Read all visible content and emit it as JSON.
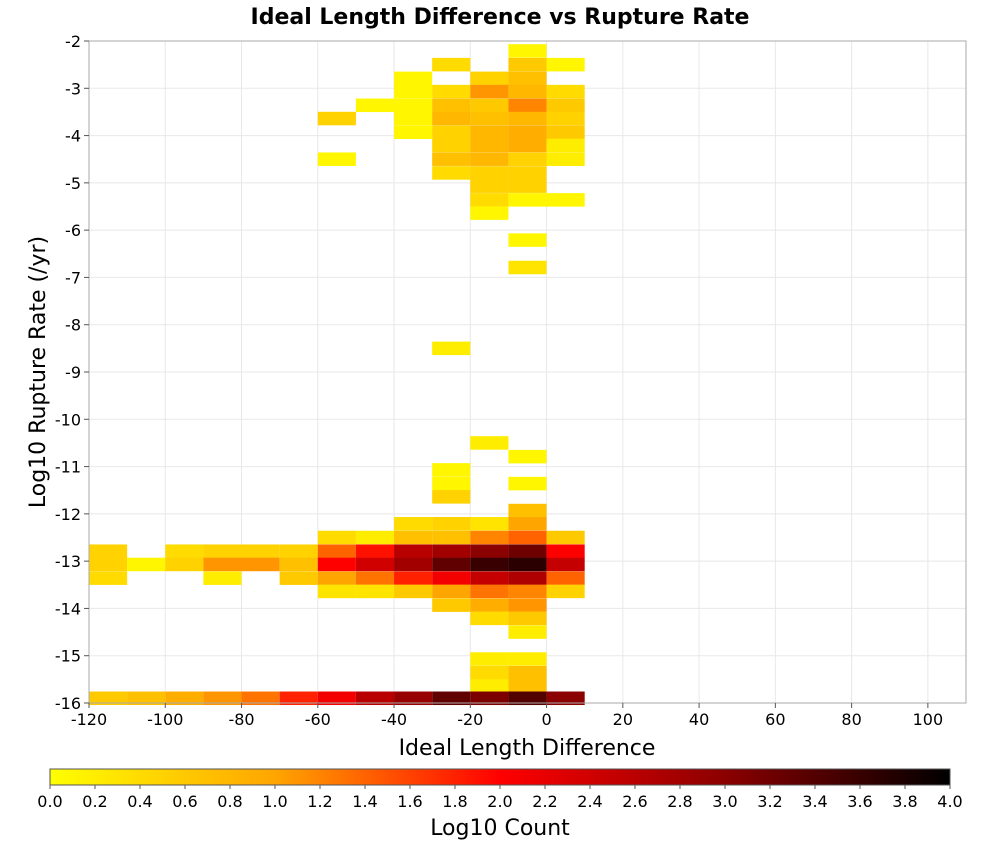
{
  "chart_data": {
    "type": "heatmap",
    "title": "Ideal Length Difference vs Rupture Rate",
    "xlabel": "Ideal Length Difference",
    "ylabel": "Log10 Rupture Rate (/yr)",
    "colorbar_label": "Log10 Count",
    "xlim": [
      -120,
      110
    ],
    "ylim": [
      -16,
      -2
    ],
    "x_ticks": [
      -120,
      -100,
      -80,
      -60,
      -40,
      -20,
      0,
      20,
      40,
      60,
      80,
      100
    ],
    "y_ticks": [
      -2,
      -3,
      -4,
      -5,
      -6,
      -7,
      -8,
      -9,
      -10,
      -11,
      -12,
      -13,
      -14,
      -15,
      -16
    ],
    "colorbar_range": [
      0.0,
      4.0
    ],
    "colorbar_ticks": [
      "0.0",
      "0.2",
      "0.4",
      "0.6",
      "0.8",
      "1.0",
      "1.2",
      "1.4",
      "1.6",
      "1.8",
      "2.0",
      "2.2",
      "2.4",
      "2.6",
      "2.8",
      "3.0",
      "3.2",
      "3.4",
      "3.6",
      "3.8",
      "4.0"
    ],
    "colorscale": [
      "#ffff00",
      "#ffa500",
      "#ff0000",
      "#8b0000",
      "#000000"
    ],
    "grid": true,
    "bin_width_x": 10,
    "bin_height_y": 0.2857,
    "cells": [
      {
        "x": -5,
        "y": -2.21,
        "v": 0.1
      },
      {
        "x": -25,
        "y": -2.5,
        "v": 0.4
      },
      {
        "x": -5,
        "y": -2.5,
        "v": 0.6
      },
      {
        "x": 5,
        "y": -2.5,
        "v": 0.1
      },
      {
        "x": -35,
        "y": -2.79,
        "v": 0.1
      },
      {
        "x": -15,
        "y": -2.79,
        "v": 0.5
      },
      {
        "x": -5,
        "y": -2.79,
        "v": 0.7
      },
      {
        "x": -35,
        "y": -3.07,
        "v": 0.1
      },
      {
        "x": -25,
        "y": -3.07,
        "v": 0.4
      },
      {
        "x": -15,
        "y": -3.07,
        "v": 1.1
      },
      {
        "x": -5,
        "y": -3.07,
        "v": 0.8
      },
      {
        "x": 5,
        "y": -3.07,
        "v": 0.4
      },
      {
        "x": -45,
        "y": -3.36,
        "v": 0.1
      },
      {
        "x": -35,
        "y": -3.36,
        "v": 0.1
      },
      {
        "x": -25,
        "y": -3.36,
        "v": 0.7
      },
      {
        "x": -15,
        "y": -3.36,
        "v": 0.6
      },
      {
        "x": -5,
        "y": -3.36,
        "v": 1.2
      },
      {
        "x": 5,
        "y": -3.36,
        "v": 0.6
      },
      {
        "x": -55,
        "y": -3.64,
        "v": 0.5
      },
      {
        "x": -35,
        "y": -3.64,
        "v": 0.1
      },
      {
        "x": -25,
        "y": -3.64,
        "v": 0.8
      },
      {
        "x": -15,
        "y": -3.64,
        "v": 0.7
      },
      {
        "x": -5,
        "y": -3.64,
        "v": 0.8
      },
      {
        "x": 5,
        "y": -3.64,
        "v": 0.5
      },
      {
        "x": -35,
        "y": -3.93,
        "v": 0.1
      },
      {
        "x": -25,
        "y": -3.93,
        "v": 0.5
      },
      {
        "x": -15,
        "y": -3.93,
        "v": 0.8
      },
      {
        "x": -5,
        "y": -3.93,
        "v": 0.9
      },
      {
        "x": 5,
        "y": -3.93,
        "v": 0.6
      },
      {
        "x": -25,
        "y": -4.21,
        "v": 0.5
      },
      {
        "x": -15,
        "y": -4.21,
        "v": 0.8
      },
      {
        "x": -5,
        "y": -4.21,
        "v": 0.9
      },
      {
        "x": 5,
        "y": -4.21,
        "v": 0.2
      },
      {
        "x": -55,
        "y": -4.5,
        "v": 0.1
      },
      {
        "x": -25,
        "y": -4.5,
        "v": 0.7
      },
      {
        "x": -15,
        "y": -4.5,
        "v": 0.8
      },
      {
        "x": -5,
        "y": -4.5,
        "v": 0.5
      },
      {
        "x": 5,
        "y": -4.5,
        "v": 0.2
      },
      {
        "x": -25,
        "y": -4.79,
        "v": 0.4
      },
      {
        "x": -15,
        "y": -4.79,
        "v": 0.5
      },
      {
        "x": -5,
        "y": -4.79,
        "v": 0.5
      },
      {
        "x": -15,
        "y": -5.07,
        "v": 0.5
      },
      {
        "x": -5,
        "y": -5.07,
        "v": 0.5
      },
      {
        "x": -15,
        "y": -5.36,
        "v": 0.4
      },
      {
        "x": -5,
        "y": -5.36,
        "v": 0.1
      },
      {
        "x": 5,
        "y": -5.36,
        "v": 0.1
      },
      {
        "x": -15,
        "y": -5.64,
        "v": 0.1
      },
      {
        "x": -5,
        "y": -6.21,
        "v": 0.1
      },
      {
        "x": -5,
        "y": -6.79,
        "v": 0.3
      },
      {
        "x": -25,
        "y": -8.5,
        "v": 0.2
      },
      {
        "x": -15,
        "y": -10.5,
        "v": 0.2
      },
      {
        "x": -5,
        "y": -10.79,
        "v": 0.1
      },
      {
        "x": -25,
        "y": -11.07,
        "v": 0.1
      },
      {
        "x": -25,
        "y": -11.36,
        "v": 0.1
      },
      {
        "x": -5,
        "y": -11.36,
        "v": 0.1
      },
      {
        "x": -25,
        "y": -11.64,
        "v": 0.5
      },
      {
        "x": -5,
        "y": -11.93,
        "v": 0.7
      },
      {
        "x": -35,
        "y": -12.21,
        "v": 0.4
      },
      {
        "x": -25,
        "y": -12.21,
        "v": 0.5
      },
      {
        "x": -15,
        "y": -12.21,
        "v": 0.3
      },
      {
        "x": -5,
        "y": -12.21,
        "v": 1.0
      },
      {
        "x": -55,
        "y": -12.5,
        "v": 0.4
      },
      {
        "x": -45,
        "y": -12.5,
        "v": 0.2
      },
      {
        "x": -35,
        "y": -12.5,
        "v": 0.7
      },
      {
        "x": -25,
        "y": -12.5,
        "v": 0.7
      },
      {
        "x": -15,
        "y": -12.5,
        "v": 1.2
      },
      {
        "x": -5,
        "y": -12.5,
        "v": 1.4
      },
      {
        "x": 5,
        "y": -12.5,
        "v": 0.6
      },
      {
        "x": -115,
        "y": -12.79,
        "v": 0.5
      },
      {
        "x": -95,
        "y": -12.79,
        "v": 0.4
      },
      {
        "x": -85,
        "y": -12.79,
        "v": 0.5
      },
      {
        "x": -75,
        "y": -12.79,
        "v": 0.5
      },
      {
        "x": -65,
        "y": -12.79,
        "v": 0.5
      },
      {
        "x": -55,
        "y": -12.79,
        "v": 1.4
      },
      {
        "x": -45,
        "y": -12.79,
        "v": 1.9
      },
      {
        "x": -35,
        "y": -12.79,
        "v": 2.6
      },
      {
        "x": -25,
        "y": -12.79,
        "v": 2.8
      },
      {
        "x": -15,
        "y": -12.79,
        "v": 3.0
      },
      {
        "x": -5,
        "y": -12.79,
        "v": 3.2
      },
      {
        "x": 5,
        "y": -12.79,
        "v": 2.0
      },
      {
        "x": -115,
        "y": -13.07,
        "v": 0.5
      },
      {
        "x": -105,
        "y": -13.07,
        "v": 0.1
      },
      {
        "x": -95,
        "y": -13.07,
        "v": 0.5
      },
      {
        "x": -85,
        "y": -13.07,
        "v": 1.1
      },
      {
        "x": -75,
        "y": -13.07,
        "v": 1.1
      },
      {
        "x": -65,
        "y": -13.07,
        "v": 0.7
      },
      {
        "x": -55,
        "y": -13.07,
        "v": 2.0
      },
      {
        "x": -45,
        "y": -13.07,
        "v": 2.4
      },
      {
        "x": -35,
        "y": -13.07,
        "v": 2.8
      },
      {
        "x": -25,
        "y": -13.07,
        "v": 3.3
      },
      {
        "x": -15,
        "y": -13.07,
        "v": 3.6
      },
      {
        "x": -5,
        "y": -13.07,
        "v": 3.7
      },
      {
        "x": 5,
        "y": -13.07,
        "v": 2.5
      },
      {
        "x": -115,
        "y": -13.36,
        "v": 0.4
      },
      {
        "x": -85,
        "y": -13.36,
        "v": 0.2
      },
      {
        "x": -65,
        "y": -13.36,
        "v": 0.6
      },
      {
        "x": -55,
        "y": -13.36,
        "v": 1.0
      },
      {
        "x": -45,
        "y": -13.36,
        "v": 1.3
      },
      {
        "x": -35,
        "y": -13.36,
        "v": 1.8
      },
      {
        "x": -25,
        "y": -13.36,
        "v": 2.1
      },
      {
        "x": -15,
        "y": -13.36,
        "v": 2.5
      },
      {
        "x": -5,
        "y": -13.36,
        "v": 2.7
      },
      {
        "x": 5,
        "y": -13.36,
        "v": 1.4
      },
      {
        "x": -55,
        "y": -13.64,
        "v": 0.3
      },
      {
        "x": -45,
        "y": -13.64,
        "v": 0.3
      },
      {
        "x": -35,
        "y": -13.64,
        "v": 0.6
      },
      {
        "x": -25,
        "y": -13.64,
        "v": 1.0
      },
      {
        "x": -15,
        "y": -13.64,
        "v": 1.3
      },
      {
        "x": -5,
        "y": -13.64,
        "v": 1.2
      },
      {
        "x": 5,
        "y": -13.64,
        "v": 0.5
      },
      {
        "x": -25,
        "y": -13.93,
        "v": 0.6
      },
      {
        "x": -15,
        "y": -13.93,
        "v": 0.9
      },
      {
        "x": -5,
        "y": -13.93,
        "v": 1.1
      },
      {
        "x": -15,
        "y": -14.21,
        "v": 0.4
      },
      {
        "x": -5,
        "y": -14.21,
        "v": 0.6
      },
      {
        "x": -5,
        "y": -14.5,
        "v": 0.2
      },
      {
        "x": -15,
        "y": -15.07,
        "v": 0.2
      },
      {
        "x": -5,
        "y": -15.07,
        "v": 0.2
      },
      {
        "x": -15,
        "y": -15.36,
        "v": 0.4
      },
      {
        "x": -5,
        "y": -15.36,
        "v": 0.7
      },
      {
        "x": -15,
        "y": -15.64,
        "v": 0.2
      },
      {
        "x": -5,
        "y": -15.64,
        "v": 0.7
      },
      {
        "x": -115,
        "y": -15.9,
        "v": 0.6
      },
      {
        "x": -105,
        "y": -15.9,
        "v": 0.7
      },
      {
        "x": -95,
        "y": -15.9,
        "v": 0.9
      },
      {
        "x": -85,
        "y": -15.9,
        "v": 1.1
      },
      {
        "x": -75,
        "y": -15.9,
        "v": 1.3
      },
      {
        "x": -65,
        "y": -15.9,
        "v": 1.8
      },
      {
        "x": -55,
        "y": -15.9,
        "v": 2.1
      },
      {
        "x": -45,
        "y": -15.9,
        "v": 2.6
      },
      {
        "x": -35,
        "y": -15.9,
        "v": 2.9
      },
      {
        "x": -25,
        "y": -15.9,
        "v": 3.3
      },
      {
        "x": -15,
        "y": -15.9,
        "v": 3.1
      },
      {
        "x": -5,
        "y": -15.9,
        "v": 3.4
      },
      {
        "x": 5,
        "y": -15.9,
        "v": 3.0
      }
    ]
  }
}
